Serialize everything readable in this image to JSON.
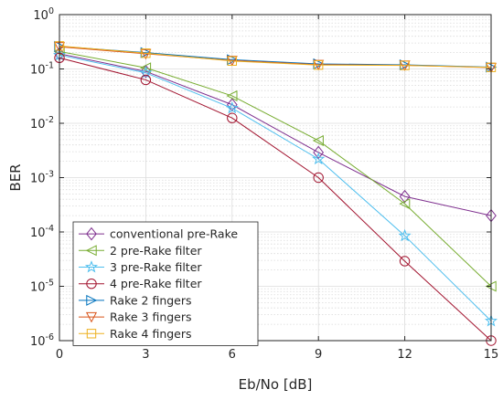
{
  "chart_data": {
    "type": "line",
    "xlabel": "Eb/No [dB]",
    "ylabel": "BER",
    "xlim": [
      0,
      15
    ],
    "ylim": [
      1e-06,
      1
    ],
    "yscale": "log",
    "grid": true,
    "minor_grid": true,
    "legend_position": "bottom-left",
    "x_ticks": [
      0,
      3,
      6,
      9,
      12,
      15
    ],
    "x_tick_labels": [
      "0",
      "3",
      "6",
      "9",
      "12",
      "15"
    ],
    "y_ticks": [
      1e-06,
      1e-05,
      0.0001,
      0.001,
      0.01,
      0.1,
      1
    ],
    "y_tick_labels": [
      {
        "base": "10",
        "exp": "-6"
      },
      {
        "base": "10",
        "exp": "-5"
      },
      {
        "base": "10",
        "exp": "-4"
      },
      {
        "base": "10",
        "exp": "-3"
      },
      {
        "base": "10",
        "exp": "-2"
      },
      {
        "base": "10",
        "exp": "-1"
      },
      {
        "base": "10",
        "exp": "0"
      }
    ],
    "x": [
      0,
      3,
      6,
      9,
      12,
      15
    ],
    "series": [
      {
        "name": "conventional pre-Rake",
        "color": "#7E2F8E",
        "marker": "diamond",
        "values": [
          0.19,
          0.09,
          0.022,
          0.0029,
          0.00045,
          0.0002
        ]
      },
      {
        "name": "2 pre-Rake filter",
        "color": "#77AC30",
        "marker": "triangle-left",
        "values": [
          0.21,
          0.105,
          0.032,
          0.0048,
          0.00033,
          1e-05
        ]
      },
      {
        "name": "3 pre-Rake filter",
        "color": "#4DBEEE",
        "marker": "star",
        "values": [
          0.18,
          0.085,
          0.019,
          0.0022,
          8.5e-05,
          2.3e-06
        ]
      },
      {
        "name": "4 pre-Rake filter",
        "color": "#A2142F",
        "marker": "circle",
        "values": [
          0.16,
          0.063,
          0.0125,
          0.001,
          2.9e-05,
          1e-06
        ]
      },
      {
        "name": "Rake 2 fingers",
        "color": "#0072BD",
        "marker": "triangle-right",
        "values": [
          0.26,
          0.2,
          0.148,
          0.124,
          0.119,
          0.108
        ]
      },
      {
        "name": "Rake 3 fingers",
        "color": "#D95319",
        "marker": "triangle-down",
        "values": [
          0.255,
          0.19,
          0.143,
          0.12,
          0.117,
          0.106
        ]
      },
      {
        "name": "Rake 4 fingers",
        "color": "#EDB120",
        "marker": "square",
        "values": [
          0.265,
          0.195,
          0.14,
          0.118,
          0.116,
          0.107
        ]
      }
    ]
  }
}
